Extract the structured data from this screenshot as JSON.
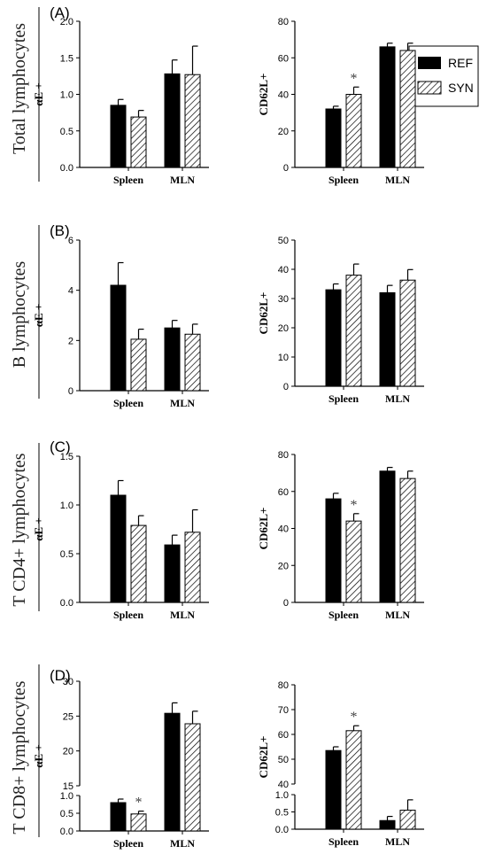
{
  "legend": {
    "items": [
      {
        "label": "REF",
        "fill": "solid"
      },
      {
        "label": "SYN",
        "fill": "hatched"
      }
    ]
  },
  "colors": {
    "REF": "#000000",
    "SYN_hatch": "#000000",
    "axis": "#000000",
    "error_bar": "#000000"
  },
  "chart_data": [
    {
      "type": "bar",
      "panel": "(A)",
      "row_label": "Total lymphocytes",
      "ylabel": "αE +",
      "categories": [
        "Spleen",
        "MLN"
      ],
      "series": [
        {
          "name": "REF",
          "values": [
            0.85,
            1.28
          ],
          "errors": [
            0.08,
            0.19
          ]
        },
        {
          "name": "SYN",
          "values": [
            0.69,
            1.27
          ],
          "errors": [
            0.09,
            0.39
          ]
        }
      ],
      "ylim": [
        0,
        2.0
      ],
      "yticks": [
        {
          "v": 0,
          "label": "0.0"
        },
        {
          "v": 0.5,
          "label": "0.5"
        },
        {
          "v": 1.0,
          "label": "1.0"
        },
        {
          "v": 1.5,
          "label": "1.5"
        },
        {
          "v": 2.0,
          "label": "2.0"
        }
      ],
      "annotations": []
    },
    {
      "type": "bar",
      "panel": "",
      "row_label": "",
      "ylabel": "CD62L+",
      "categories": [
        "Spleen",
        "MLN"
      ],
      "series": [
        {
          "name": "REF",
          "values": [
            32,
            66
          ],
          "errors": [
            1.5,
            2
          ]
        },
        {
          "name": "SYN",
          "values": [
            40,
            64
          ],
          "errors": [
            4,
            4
          ]
        }
      ],
      "ylim": [
        0,
        80
      ],
      "yticks": [
        {
          "v": 0,
          "label": "0"
        },
        {
          "v": 20,
          "label": "20"
        },
        {
          "v": 40,
          "label": "40"
        },
        {
          "v": 60,
          "label": "60"
        },
        {
          "v": 80,
          "label": "80"
        }
      ],
      "annotations": [
        {
          "text": "*",
          "series": "SYN",
          "category": "Spleen"
        }
      ]
    },
    {
      "type": "bar",
      "panel": "(B)",
      "row_label": "B lymphocytes",
      "ylabel": "αE +",
      "categories": [
        "Spleen",
        "MLN"
      ],
      "series": [
        {
          "name": "REF",
          "values": [
            4.2,
            2.5
          ],
          "errors": [
            0.9,
            0.3
          ]
        },
        {
          "name": "SYN",
          "values": [
            2.05,
            2.25
          ],
          "errors": [
            0.4,
            0.4
          ]
        }
      ],
      "ylim": [
        0,
        6
      ],
      "yticks": [
        {
          "v": 0,
          "label": "0"
        },
        {
          "v": 2,
          "label": "2"
        },
        {
          "v": 4,
          "label": "4"
        },
        {
          "v": 6,
          "label": "6"
        }
      ],
      "annotations": []
    },
    {
      "type": "bar",
      "panel": "",
      "row_label": "",
      "ylabel": "CD62L+",
      "categories": [
        "Spleen",
        "MLN"
      ],
      "series": [
        {
          "name": "REF",
          "values": [
            33,
            32
          ],
          "errors": [
            2,
            2.5
          ]
        },
        {
          "name": "SYN",
          "values": [
            38,
            36.3
          ],
          "errors": [
            3.8,
            3.6
          ]
        }
      ],
      "ylim": [
        0,
        50
      ],
      "yticks": [
        {
          "v": 0,
          "label": "0"
        },
        {
          "v": 10,
          "label": "10"
        },
        {
          "v": 20,
          "label": "20"
        },
        {
          "v": 30,
          "label": "30"
        },
        {
          "v": 40,
          "label": "40"
        },
        {
          "v": 50,
          "label": "50"
        }
      ],
      "annotations": []
    },
    {
      "type": "bar",
      "panel": "(C)",
      "row_label": "T CD4+ lymphocytes",
      "ylabel": "αE +",
      "categories": [
        "Spleen",
        "MLN"
      ],
      "series": [
        {
          "name": "REF",
          "values": [
            1.1,
            0.59
          ],
          "errors": [
            0.15,
            0.1
          ]
        },
        {
          "name": "SYN",
          "values": [
            0.79,
            0.72
          ],
          "errors": [
            0.1,
            0.23
          ]
        }
      ],
      "ylim": [
        0,
        1.5
      ],
      "yticks": [
        {
          "v": 0,
          "label": "0.0"
        },
        {
          "v": 0.5,
          "label": "0.5"
        },
        {
          "v": 1.0,
          "label": "1.0"
        },
        {
          "v": 1.5,
          "label": "1.5"
        }
      ],
      "annotations": []
    },
    {
      "type": "bar",
      "panel": "",
      "row_label": "",
      "ylabel": "CD62L+",
      "categories": [
        "Spleen",
        "MLN"
      ],
      "series": [
        {
          "name": "REF",
          "values": [
            56,
            71
          ],
          "errors": [
            3,
            2
          ]
        },
        {
          "name": "SYN",
          "values": [
            44,
            67
          ],
          "errors": [
            4,
            4
          ]
        }
      ],
      "ylim": [
        0,
        80
      ],
      "yticks": [
        {
          "v": 0,
          "label": "0"
        },
        {
          "v": 20,
          "label": "20"
        },
        {
          "v": 40,
          "label": "40"
        },
        {
          "v": 60,
          "label": "60"
        },
        {
          "v": 80,
          "label": "80"
        }
      ],
      "annotations": [
        {
          "text": "*",
          "series": "SYN",
          "category": "Spleen"
        }
      ]
    },
    {
      "type": "bar",
      "panel": "(D)",
      "row_label": "T CD8+ lymphocytes",
      "ylabel": "αE +",
      "categories": [
        "Spleen",
        "MLN"
      ],
      "axis_break": true,
      "series": [
        {
          "name": "REF",
          "values": [
            0.8,
            25.4
          ],
          "errors": [
            0.1,
            1.5
          ]
        },
        {
          "name": "SYN",
          "values": [
            0.48,
            23.9
          ],
          "errors": [
            0.08,
            1.8
          ]
        }
      ],
      "ylim_lower": [
        0,
        1.0
      ],
      "ylim_upper": [
        15,
        30
      ],
      "yticks_lower": [
        {
          "v": 0,
          "label": "0.0"
        },
        {
          "v": 0.5,
          "label": "0.5"
        },
        {
          "v": 1.0,
          "label": "1.0"
        }
      ],
      "yticks_upper": [
        {
          "v": 15,
          "label": "15"
        },
        {
          "v": 20,
          "label": "20"
        },
        {
          "v": 25,
          "label": "25"
        },
        {
          "v": 30,
          "label": "30"
        }
      ],
      "annotations": [
        {
          "text": "*",
          "series": "SYN",
          "category": "Spleen"
        }
      ]
    },
    {
      "type": "bar",
      "panel": "",
      "row_label": "",
      "ylabel": "CD62L+",
      "categories": [
        "Spleen",
        "MLN"
      ],
      "axis_break": true,
      "series": [
        {
          "name": "REF",
          "values": [
            53.5,
            0.25
          ],
          "errors": [
            1.5,
            0.12
          ]
        },
        {
          "name": "SYN",
          "values": [
            61.5,
            0.55
          ],
          "errors": [
            2,
            0.3
          ]
        }
      ],
      "ylim_lower": [
        0,
        1.0
      ],
      "ylim_upper": [
        40,
        80
      ],
      "yticks_lower": [
        {
          "v": 0,
          "label": "0.0"
        },
        {
          "v": 0.5,
          "label": "0.5"
        },
        {
          "v": 1.0,
          "label": "1.0"
        }
      ],
      "yticks_upper": [
        {
          "v": 40,
          "label": "40"
        },
        {
          "v": 50,
          "label": "50"
        },
        {
          "v": 60,
          "label": "60"
        },
        {
          "v": 70,
          "label": "70"
        },
        {
          "v": 80,
          "label": "80"
        }
      ],
      "annotations": [
        {
          "text": "*",
          "series": "SYN",
          "category": "Spleen"
        }
      ]
    }
  ]
}
